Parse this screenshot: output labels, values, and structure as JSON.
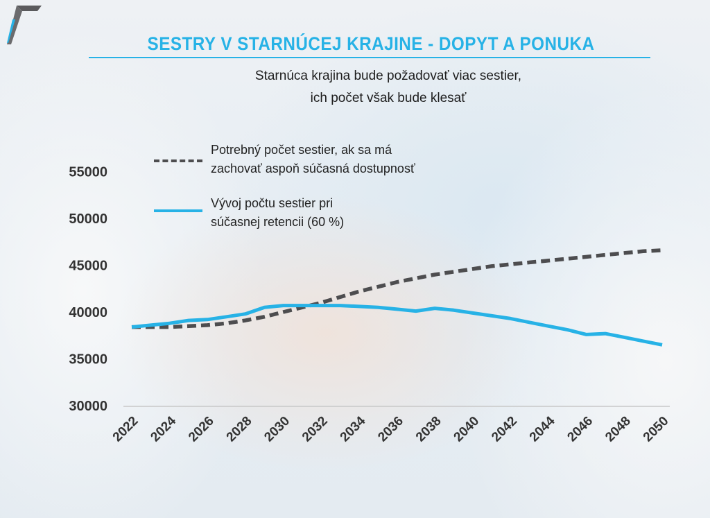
{
  "title": "SESTRY V STARNÚCEJ KRAJINE - DOPYT A PONUKA",
  "subtitle_lines": [
    "Starnúca krajina bude požadovať viac sestier,",
    "ich počet však bude klesať"
  ],
  "colors": {
    "accent": "#27b2e6",
    "demand": "#4d4d4f",
    "supply": "#27b2e6"
  },
  "chart_data": {
    "type": "line",
    "title": "SESTRY V STARNÚCEJ KRAJINE - DOPYT A PONUKA",
    "xlabel": "",
    "ylabel": "",
    "ylim": [
      30000,
      55000
    ],
    "yticks": [
      30000,
      35000,
      40000,
      45000,
      50000,
      55000
    ],
    "xticks": [
      2022,
      2024,
      2026,
      2028,
      2030,
      2032,
      2034,
      2036,
      2038,
      2040,
      2042,
      2044,
      2046,
      2048,
      2050
    ],
    "x": [
      2022,
      2023,
      2024,
      2025,
      2026,
      2027,
      2028,
      2029,
      2030,
      2031,
      2032,
      2033,
      2034,
      2035,
      2036,
      2037,
      2038,
      2039,
      2040,
      2041,
      2042,
      2043,
      2044,
      2045,
      2046,
      2047,
      2048,
      2049,
      2050
    ],
    "legend_placement": "top-left",
    "series": [
      {
        "name": "Potrebný počet sestier, ak sa má zachovať aspoň súčasná dostupnosť",
        "legend_lines": [
          "Potrebný počet sestier, ak sa má",
          "zachovať aspoň súčasná dostupnosť"
        ],
        "style": "dashed",
        "values": [
          38400,
          38400,
          38400,
          38500,
          38600,
          38800,
          39100,
          39500,
          40000,
          40500,
          41000,
          41600,
          42200,
          42700,
          43200,
          43600,
          44000,
          44300,
          44600,
          44900,
          45100,
          45300,
          45500,
          45700,
          45900,
          46100,
          46300,
          46500,
          46600
        ]
      },
      {
        "name": "Vývoj počtu sestier pri súčasnej retencii (60 %)",
        "legend_lines": [
          "Vývoj počtu sestier pri",
          "súčasnej retencii (60 %)"
        ],
        "style": "solid",
        "values": [
          38400,
          38600,
          38800,
          39100,
          39200,
          39500,
          39800,
          40500,
          40700,
          40700,
          40700,
          40700,
          40600,
          40500,
          40300,
          40100,
          40400,
          40200,
          39900,
          39600,
          39300,
          38900,
          38500,
          38100,
          37600,
          37700,
          37300,
          36900,
          36500
        ]
      }
    ]
  }
}
